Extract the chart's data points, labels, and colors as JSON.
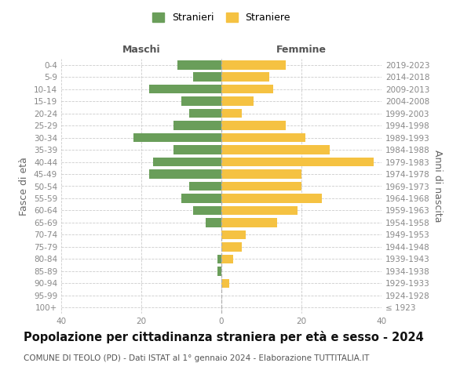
{
  "age_groups": [
    "100+",
    "95-99",
    "90-94",
    "85-89",
    "80-84",
    "75-79",
    "70-74",
    "65-69",
    "60-64",
    "55-59",
    "50-54",
    "45-49",
    "40-44",
    "35-39",
    "30-34",
    "25-29",
    "20-24",
    "15-19",
    "10-14",
    "5-9",
    "0-4"
  ],
  "birth_years": [
    "≤ 1923",
    "1924-1928",
    "1929-1933",
    "1934-1938",
    "1939-1943",
    "1944-1948",
    "1949-1953",
    "1954-1958",
    "1959-1963",
    "1964-1968",
    "1969-1973",
    "1974-1978",
    "1979-1983",
    "1984-1988",
    "1989-1993",
    "1994-1998",
    "1999-2003",
    "2004-2008",
    "2009-2013",
    "2014-2018",
    "2019-2023"
  ],
  "maschi": [
    0,
    0,
    0,
    1,
    1,
    0,
    0,
    4,
    7,
    10,
    8,
    18,
    17,
    12,
    22,
    12,
    8,
    10,
    18,
    7,
    11
  ],
  "femmine": [
    0,
    0,
    2,
    0,
    3,
    5,
    6,
    14,
    19,
    25,
    20,
    20,
    38,
    27,
    21,
    16,
    5,
    8,
    13,
    12,
    16
  ],
  "maschi_color": "#6a9e5a",
  "femmine_color": "#f5c242",
  "background_color": "#ffffff",
  "grid_color": "#cccccc",
  "title": "Popolazione per cittadinanza straniera per età e sesso - 2024",
  "subtitle": "COMUNE DI TEOLO (PD) - Dati ISTAT al 1° gennaio 2024 - Elaborazione TUTTITALIA.IT",
  "xlabel_left": "Maschi",
  "xlabel_right": "Femmine",
  "ylabel_left": "Fasce di età",
  "ylabel_right": "Anni di nascita",
  "legend_stranieri": "Stranieri",
  "legend_straniere": "Straniere",
  "xlim": 40,
  "title_fontsize": 10.5,
  "subtitle_fontsize": 7.5,
  "tick_fontsize": 7.5,
  "label_fontsize": 9,
  "header_fontsize": 9
}
